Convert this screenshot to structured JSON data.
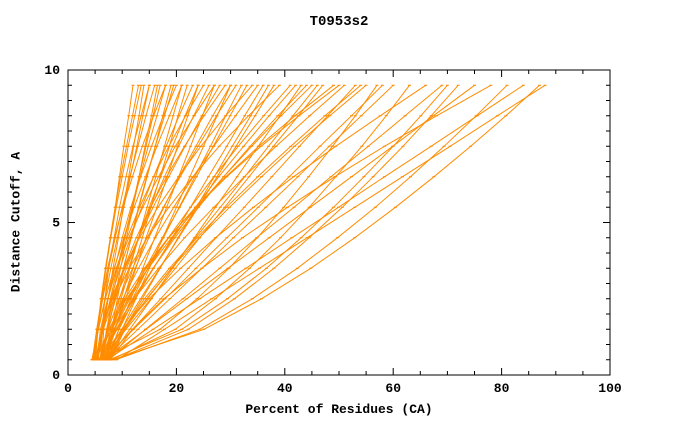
{
  "colors": {
    "curve": "#ff8c00",
    "axis": "#000000",
    "background": "#ffffff",
    "text": "#000000"
  },
  "chart_data": {
    "type": "line",
    "title": "T0953s2",
    "xlabel": "Percent of Residues (CA)",
    "ylabel": "Distance Cutoff, A",
    "xlim": [
      0,
      100
    ],
    "ylim": [
      0,
      10
    ],
    "x_major_ticks": [
      0,
      20,
      40,
      60,
      80,
      100
    ],
    "x_minor_step": 5,
    "y_major_ticks": [
      0,
      5,
      10
    ],
    "y_minor_step": 0.5,
    "grid": false,
    "legend": "none",
    "series_color": "#ff8c00",
    "y_values": [
      0.5,
      1.5,
      2.5,
      3.5,
      4.5,
      5.5,
      6.5,
      7.5,
      8.5,
      9.5
    ],
    "series": [
      [
        4.5,
        5.3,
        6.2,
        7.0,
        7.8,
        8.7,
        9.5,
        10.3,
        11.2,
        12
      ],
      [
        5,
        5.5,
        6.1,
        6.9,
        7.8,
        8.7,
        9.7,
        10.8,
        11.9,
        13
      ],
      [
        5.5,
        6.4,
        7.4,
        8.3,
        9.3,
        10.2,
        11.2,
        12.1,
        13.1,
        14
      ],
      [
        6,
        6.3,
        6.8,
        7.5,
        8.5,
        9.5,
        10.7,
        12.0,
        13.5,
        15
      ],
      [
        4.8,
        5.5,
        6.4,
        7.5,
        8.7,
        10.0,
        11.4,
        12.9,
        14.4,
        16
      ],
      [
        5.2,
        6.5,
        7.8,
        9.1,
        10.4,
        11.8,
        13.1,
        14.4,
        15.7,
        17
      ],
      [
        6.5,
        7.2,
        8.1,
        9.3,
        10.5,
        11.9,
        13.3,
        14.8,
        16.4,
        18
      ],
      [
        5.8,
        7.3,
        8.7,
        10.2,
        11.7,
        13.1,
        14.6,
        16.1,
        17.5,
        19
      ],
      [
        6.2,
        6.6,
        7.4,
        8.6,
        10.0,
        11.6,
        13.4,
        15.4,
        17.6,
        20
      ],
      [
        4.6,
        5.6,
        6.9,
        8.5,
        10.3,
        12.2,
        14.3,
        16.4,
        18.7,
        21
      ],
      [
        7,
        8.7,
        10.3,
        12,
        13.7,
        15.3,
        17,
        18.7,
        20.3,
        22
      ],
      [
        5.4,
        6.4,
        7.9,
        9.6,
        11.5,
        13.6,
        15.8,
        18.1,
        20.5,
        23
      ],
      [
        6.8,
        8.7,
        10.6,
        12.5,
        14.4,
        16.4,
        18.3,
        20.2,
        22.1,
        24
      ],
      [
        5.6,
        6.2,
        7.4,
        8.9,
        10.9,
        13.2,
        15.8,
        18.6,
        21.7,
        25
      ],
      [
        6,
        7.2,
        8.8,
        10.8,
        13.0,
        15.3,
        17.8,
        20.4,
        23.2,
        26
      ],
      [
        7.2,
        9.4,
        11.6,
        13.8,
        16.0,
        18.2,
        20.4,
        22.6,
        24.8,
        27
      ],
      [
        5,
        6.3,
        8.2,
        10.5,
        13.0,
        15.7,
        18.6,
        21.6,
        24.7,
        28
      ],
      [
        6.4,
        7.1,
        8.4,
        10.3,
        12.6,
        15.2,
        18.2,
        21.5,
        25.1,
        29
      ],
      [
        7.5,
        10,
        12.5,
        15,
        17.5,
        20,
        22.5,
        25,
        27.5,
        30
      ],
      [
        5.9,
        7.4,
        9.4,
        11.9,
        14.6,
        17.6,
        20.7,
        24.0,
        27.4,
        31
      ],
      [
        6.1,
        9.0,
        11.9,
        14.7,
        17.6,
        20.5,
        23.4,
        26.3,
        29.1,
        32
      ],
      [
        4.4,
        5.6,
        6.8,
        7.9,
        9.1,
        10.3,
        11.5,
        12.7,
        13.8,
        15
      ],
      [
        5.1,
        5.5,
        6.3,
        7.3,
        8.6,
        10.1,
        11.9,
        13.7,
        15.8,
        18
      ],
      [
        6.6,
        8.2,
        9.8,
        11.4,
        13.0,
        14.6,
        16.2,
        17.8,
        19.4,
        21
      ],
      [
        7.1,
        8.1,
        9.5,
        11.2,
        13.0,
        15.0,
        17.1,
        19.3,
        21.6,
        24
      ],
      [
        5.3,
        6.0,
        7.3,
        9.0,
        11.2,
        13.8,
        16.7,
        19.8,
        23.3,
        27
      ],
      [
        6.9,
        8.2,
        10.2,
        12.4,
        14.9,
        17.7,
        20.5,
        23.6,
        26.7,
        30
      ],
      [
        4.9,
        5.4,
        6.1,
        7.0,
        7.9,
        8.9,
        10.0,
        11.1,
        12.3,
        13.5
      ],
      [
        6.3,
        7.4,
        8.6,
        9.7,
        10.8,
        12.0,
        13.1,
        14.2,
        15.4,
        16.5
      ],
      [
        7.4,
        8.1,
        9.1,
        10.3,
        11.6,
        13.0,
        14.5,
        16.1,
        17.8,
        19.5
      ],
      [
        5,
        8.1,
        11.2,
        14.3,
        17.4,
        20.6,
        23.7,
        26.8,
        29.9,
        33
      ],
      [
        6,
        7.7,
        10.1,
        13.0,
        16.1,
        19.5,
        23.1,
        26.9,
        30.9,
        35
      ],
      [
        7,
        10.3,
        13.7,
        17.0,
        20.3,
        23.7,
        27.0,
        30.3,
        33.7,
        37
      ],
      [
        5.5,
        6.5,
        8.5,
        11.3,
        14.6,
        18.6,
        23.0,
        27.9,
        33.3,
        39
      ],
      [
        6.5,
        8.5,
        11.4,
        14.8,
        18.5,
        22.6,
        26.9,
        31.4,
        36.1,
        41
      ],
      [
        7.5,
        11.4,
        15.4,
        19.3,
        23.3,
        27.2,
        31.2,
        35.1,
        39.1,
        43
      ],
      [
        5.2,
        7.5,
        10.8,
        14.8,
        19.1,
        23.8,
        28.7,
        33.9,
        39.3,
        45
      ],
      [
        6.2,
        10.7,
        15.3,
        19.8,
        24.3,
        28.9,
        33.4,
        37.9,
        42.5,
        47
      ],
      [
        7.2,
        8.5,
        11.0,
        14.4,
        18.6,
        23.5,
        29.1,
        35.2,
        41.9,
        49
      ],
      [
        5.8,
        8.4,
        12.2,
        16.7,
        21.5,
        26.9,
        32.5,
        38.4,
        44.6,
        51
      ],
      [
        6.8,
        11.9,
        17.1,
        22.2,
        27.3,
        32.5,
        37.6,
        42.7,
        47.9,
        53
      ],
      [
        7.8,
        10.5,
        14.5,
        19.1,
        24.2,
        29.8,
        35.7,
        41.8,
        48.3,
        55
      ],
      [
        5.4,
        6.3,
        8.0,
        10.3,
        13.2,
        16.6,
        20.4,
        24.5,
        29.1,
        34
      ],
      [
        6.4,
        9.9,
        13.4,
        16.9,
        20.4,
        24.0,
        27.5,
        31.0,
        34.5,
        38
      ],
      [
        7.4,
        9.4,
        12.3,
        15.7,
        19.4,
        23.5,
        27.8,
        32.4,
        37.1,
        42
      ],
      [
        5.6,
        10.1,
        14.6,
        19.1,
        23.5,
        28.1,
        32.6,
        37.0,
        41.5,
        46
      ],
      [
        6.6,
        7.9,
        10.5,
        14.1,
        18.5,
        23.6,
        29.3,
        35.6,
        42.6,
        50
      ],
      [
        7.6,
        10.3,
        14.1,
        18.7,
        23.8,
        29.2,
        35.0,
        41.1,
        47.4,
        54
      ],
      [
        5.7,
        9.1,
        12.4,
        15.8,
        19.2,
        22.6,
        25.9,
        29.3,
        32.6,
        36
      ],
      [
        6.7,
        8.9,
        12.0,
        15.7,
        19.7,
        24.1,
        28.7,
        33.6,
        38.7,
        44
      ],
      [
        6,
        17.0,
        23.8,
        29.7,
        34.9,
        39.8,
        44.4,
        48.8,
        53.0,
        57
      ],
      [
        7,
        12.9,
        18.8,
        24.7,
        30.5,
        36.5,
        42.4,
        48.2,
        54.1,
        60
      ],
      [
        8,
        19.8,
        27.2,
        33.5,
        39.2,
        44.5,
        49.4,
        54.2,
        58.7,
        63
      ],
      [
        6.5,
        10.0,
        14.9,
        20.8,
        27.2,
        34.2,
        41.6,
        49.4,
        57.6,
        66
      ],
      [
        7.5,
        14.3,
        21.2,
        28.0,
        34.8,
        41.7,
        48.5,
        55.4,
        62.2,
        69
      ],
      [
        8.5,
        22.2,
        30.7,
        38.0,
        44.5,
        50.6,
        56.3,
        61.8,
        67.0,
        72
      ],
      [
        6.8,
        14.4,
        21.9,
        29.5,
        37.1,
        44.7,
        52.3,
        59.9,
        67.4,
        75
      ],
      [
        7.8,
        11.9,
        17.7,
        24.7,
        32.2,
        40.5,
        49.2,
        58.4,
        68.0,
        78
      ],
      [
        8.8,
        24.3,
        34.0,
        42.3,
        49.7,
        56.7,
        63.2,
        69.4,
        75.3,
        81
      ],
      [
        7.2,
        15.7,
        24.3,
        32.8,
        41.3,
        49.9,
        58.4,
        67.0,
        75.5,
        84
      ],
      [
        8.2,
        25.1,
        35.7,
        44.8,
        52.9,
        60.4,
        67.5,
        74.3,
        80.8,
        87
      ],
      [
        9,
        17.8,
        26.5,
        35.3,
        44.1,
        52.9,
        61.7,
        70.5,
        79.2,
        88
      ],
      [
        6.4,
        12.1,
        17.9,
        23.6,
        29.3,
        35.1,
        40.8,
        46.5,
        52.3,
        58
      ],
      [
        7.6,
        21.0,
        29.4,
        36.6,
        43.0,
        49.0,
        54.6,
        60.0,
        65.1,
        70
      ]
    ]
  }
}
